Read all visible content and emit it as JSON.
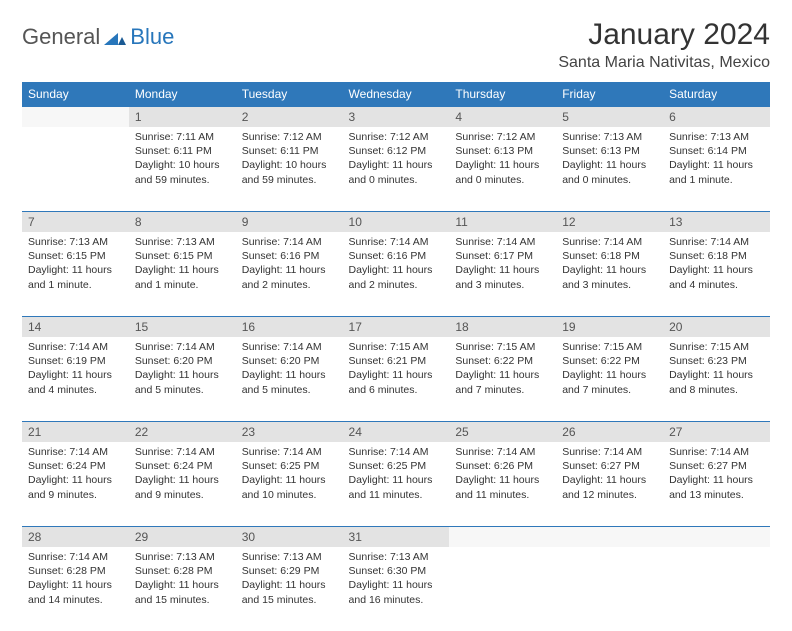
{
  "logo": {
    "text1": "General",
    "text2": "Blue"
  },
  "title": "January 2024",
  "location": "Santa Maria Nativitas, Mexico",
  "colors": {
    "header_bg": "#2f78ba",
    "header_text": "#ffffff",
    "daynum_bg": "#e3e3e3",
    "rule": "#2f78ba",
    "logo_blue": "#2776bb"
  },
  "weekdays": [
    "Sunday",
    "Monday",
    "Tuesday",
    "Wednesday",
    "Thursday",
    "Friday",
    "Saturday"
  ],
  "weeks": [
    [
      null,
      {
        "n": "1",
        "sr": "Sunrise: 7:11 AM",
        "ss": "Sunset: 6:11 PM",
        "dl": "Daylight: 10 hours and 59 minutes."
      },
      {
        "n": "2",
        "sr": "Sunrise: 7:12 AM",
        "ss": "Sunset: 6:11 PM",
        "dl": "Daylight: 10 hours and 59 minutes."
      },
      {
        "n": "3",
        "sr": "Sunrise: 7:12 AM",
        "ss": "Sunset: 6:12 PM",
        "dl": "Daylight: 11 hours and 0 minutes."
      },
      {
        "n": "4",
        "sr": "Sunrise: 7:12 AM",
        "ss": "Sunset: 6:13 PM",
        "dl": "Daylight: 11 hours and 0 minutes."
      },
      {
        "n": "5",
        "sr": "Sunrise: 7:13 AM",
        "ss": "Sunset: 6:13 PM",
        "dl": "Daylight: 11 hours and 0 minutes."
      },
      {
        "n": "6",
        "sr": "Sunrise: 7:13 AM",
        "ss": "Sunset: 6:14 PM",
        "dl": "Daylight: 11 hours and 1 minute."
      }
    ],
    [
      {
        "n": "7",
        "sr": "Sunrise: 7:13 AM",
        "ss": "Sunset: 6:15 PM",
        "dl": "Daylight: 11 hours and 1 minute."
      },
      {
        "n": "8",
        "sr": "Sunrise: 7:13 AM",
        "ss": "Sunset: 6:15 PM",
        "dl": "Daylight: 11 hours and 1 minute."
      },
      {
        "n": "9",
        "sr": "Sunrise: 7:14 AM",
        "ss": "Sunset: 6:16 PM",
        "dl": "Daylight: 11 hours and 2 minutes."
      },
      {
        "n": "10",
        "sr": "Sunrise: 7:14 AM",
        "ss": "Sunset: 6:16 PM",
        "dl": "Daylight: 11 hours and 2 minutes."
      },
      {
        "n": "11",
        "sr": "Sunrise: 7:14 AM",
        "ss": "Sunset: 6:17 PM",
        "dl": "Daylight: 11 hours and 3 minutes."
      },
      {
        "n": "12",
        "sr": "Sunrise: 7:14 AM",
        "ss": "Sunset: 6:18 PM",
        "dl": "Daylight: 11 hours and 3 minutes."
      },
      {
        "n": "13",
        "sr": "Sunrise: 7:14 AM",
        "ss": "Sunset: 6:18 PM",
        "dl": "Daylight: 11 hours and 4 minutes."
      }
    ],
    [
      {
        "n": "14",
        "sr": "Sunrise: 7:14 AM",
        "ss": "Sunset: 6:19 PM",
        "dl": "Daylight: 11 hours and 4 minutes."
      },
      {
        "n": "15",
        "sr": "Sunrise: 7:14 AM",
        "ss": "Sunset: 6:20 PM",
        "dl": "Daylight: 11 hours and 5 minutes."
      },
      {
        "n": "16",
        "sr": "Sunrise: 7:14 AM",
        "ss": "Sunset: 6:20 PM",
        "dl": "Daylight: 11 hours and 5 minutes."
      },
      {
        "n": "17",
        "sr": "Sunrise: 7:15 AM",
        "ss": "Sunset: 6:21 PM",
        "dl": "Daylight: 11 hours and 6 minutes."
      },
      {
        "n": "18",
        "sr": "Sunrise: 7:15 AM",
        "ss": "Sunset: 6:22 PM",
        "dl": "Daylight: 11 hours and 7 minutes."
      },
      {
        "n": "19",
        "sr": "Sunrise: 7:15 AM",
        "ss": "Sunset: 6:22 PM",
        "dl": "Daylight: 11 hours and 7 minutes."
      },
      {
        "n": "20",
        "sr": "Sunrise: 7:15 AM",
        "ss": "Sunset: 6:23 PM",
        "dl": "Daylight: 11 hours and 8 minutes."
      }
    ],
    [
      {
        "n": "21",
        "sr": "Sunrise: 7:14 AM",
        "ss": "Sunset: 6:24 PM",
        "dl": "Daylight: 11 hours and 9 minutes."
      },
      {
        "n": "22",
        "sr": "Sunrise: 7:14 AM",
        "ss": "Sunset: 6:24 PM",
        "dl": "Daylight: 11 hours and 9 minutes."
      },
      {
        "n": "23",
        "sr": "Sunrise: 7:14 AM",
        "ss": "Sunset: 6:25 PM",
        "dl": "Daylight: 11 hours and 10 minutes."
      },
      {
        "n": "24",
        "sr": "Sunrise: 7:14 AM",
        "ss": "Sunset: 6:25 PM",
        "dl": "Daylight: 11 hours and 11 minutes."
      },
      {
        "n": "25",
        "sr": "Sunrise: 7:14 AM",
        "ss": "Sunset: 6:26 PM",
        "dl": "Daylight: 11 hours and 11 minutes."
      },
      {
        "n": "26",
        "sr": "Sunrise: 7:14 AM",
        "ss": "Sunset: 6:27 PM",
        "dl": "Daylight: 11 hours and 12 minutes."
      },
      {
        "n": "27",
        "sr": "Sunrise: 7:14 AM",
        "ss": "Sunset: 6:27 PM",
        "dl": "Daylight: 11 hours and 13 minutes."
      }
    ],
    [
      {
        "n": "28",
        "sr": "Sunrise: 7:14 AM",
        "ss": "Sunset: 6:28 PM",
        "dl": "Daylight: 11 hours and 14 minutes."
      },
      {
        "n": "29",
        "sr": "Sunrise: 7:13 AM",
        "ss": "Sunset: 6:28 PM",
        "dl": "Daylight: 11 hours and 15 minutes."
      },
      {
        "n": "30",
        "sr": "Sunrise: 7:13 AM",
        "ss": "Sunset: 6:29 PM",
        "dl": "Daylight: 11 hours and 15 minutes."
      },
      {
        "n": "31",
        "sr": "Sunrise: 7:13 AM",
        "ss": "Sunset: 6:30 PM",
        "dl": "Daylight: 11 hours and 16 minutes."
      },
      null,
      null,
      null
    ]
  ]
}
